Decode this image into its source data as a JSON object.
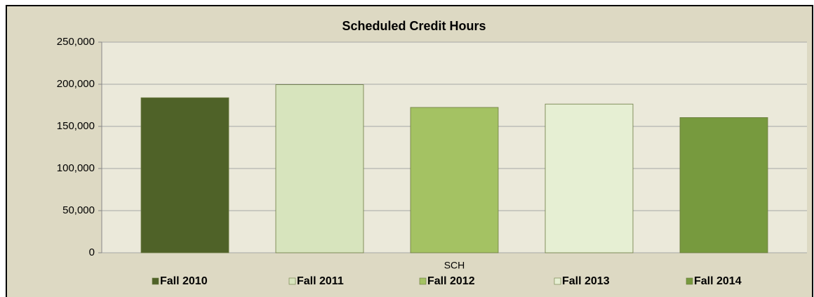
{
  "chart_data": {
    "type": "bar",
    "title": "Scheduled Credit Hours",
    "categories": [
      "SCH"
    ],
    "series": [
      {
        "name": "Fall 2010",
        "color": "#4f6228",
        "values": [
          184000
        ]
      },
      {
        "name": "Fall 2011",
        "color": "#d7e4bd",
        "values": [
          199500
        ]
      },
      {
        "name": "Fall 2012",
        "color": "#a4c263",
        "values": [
          172500
        ]
      },
      {
        "name": "Fall 2013",
        "color": "#e6efd3",
        "values": [
          176500
        ]
      },
      {
        "name": "Fall 2014",
        "color": "#779a3e",
        "values": [
          160500
        ]
      }
    ],
    "ylim": [
      0,
      250000
    ],
    "yticks": [
      0,
      {
        "value": 50000,
        "label": "50,000"
      },
      {
        "value": 100000,
        "label": "100,000"
      },
      {
        "value": 150000,
        "label": "150,000"
      },
      {
        "value": 200000,
        "label": "200,000"
      },
      {
        "value": 250000,
        "label": "250,000"
      }
    ],
    "grid": true,
    "legend": "bottom"
  }
}
